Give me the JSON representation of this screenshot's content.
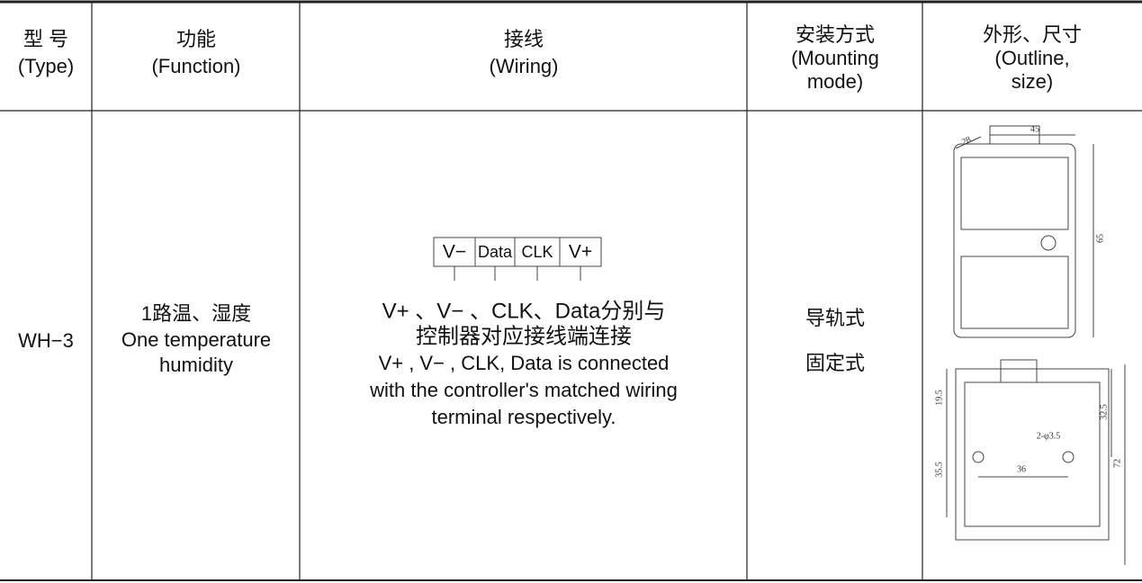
{
  "table": {
    "headers": [
      [
        "型 号",
        "(Type)"
      ],
      [
        "功能",
        "(Function)"
      ],
      [
        "接线",
        "(Wiring)"
      ],
      [
        "安装方式",
        "(Mounting",
        "mode)"
      ],
      [
        "外形、尺寸",
        "(Outline,",
        "size)"
      ]
    ],
    "rows": [
      {
        "type": "WH−3",
        "function": [
          "1路温、湿度",
          "One  temperature",
          "humidity"
        ],
        "wiring": {
          "terminals": [
            "V−",
            "Data",
            "CLK",
            "V+"
          ],
          "text_zh": [
            "V+ 、V− 、CLK、Data分别与",
            "控制器对应接线端连接"
          ],
          "text_en": [
            "V+ ,  V− , CLK, Data is connected",
            "with the controller's matched wiring",
            "terminal respectively."
          ]
        },
        "mounting": [
          "导轨式",
          "固定式"
        ],
        "outline": {
          "top_view": [
            "28",
            "45",
            "65"
          ],
          "front_view": [
            "19.5",
            "32.5",
            "35.5",
            "36",
            "72",
            "2-φ3.5"
          ]
        }
      }
    ]
  }
}
